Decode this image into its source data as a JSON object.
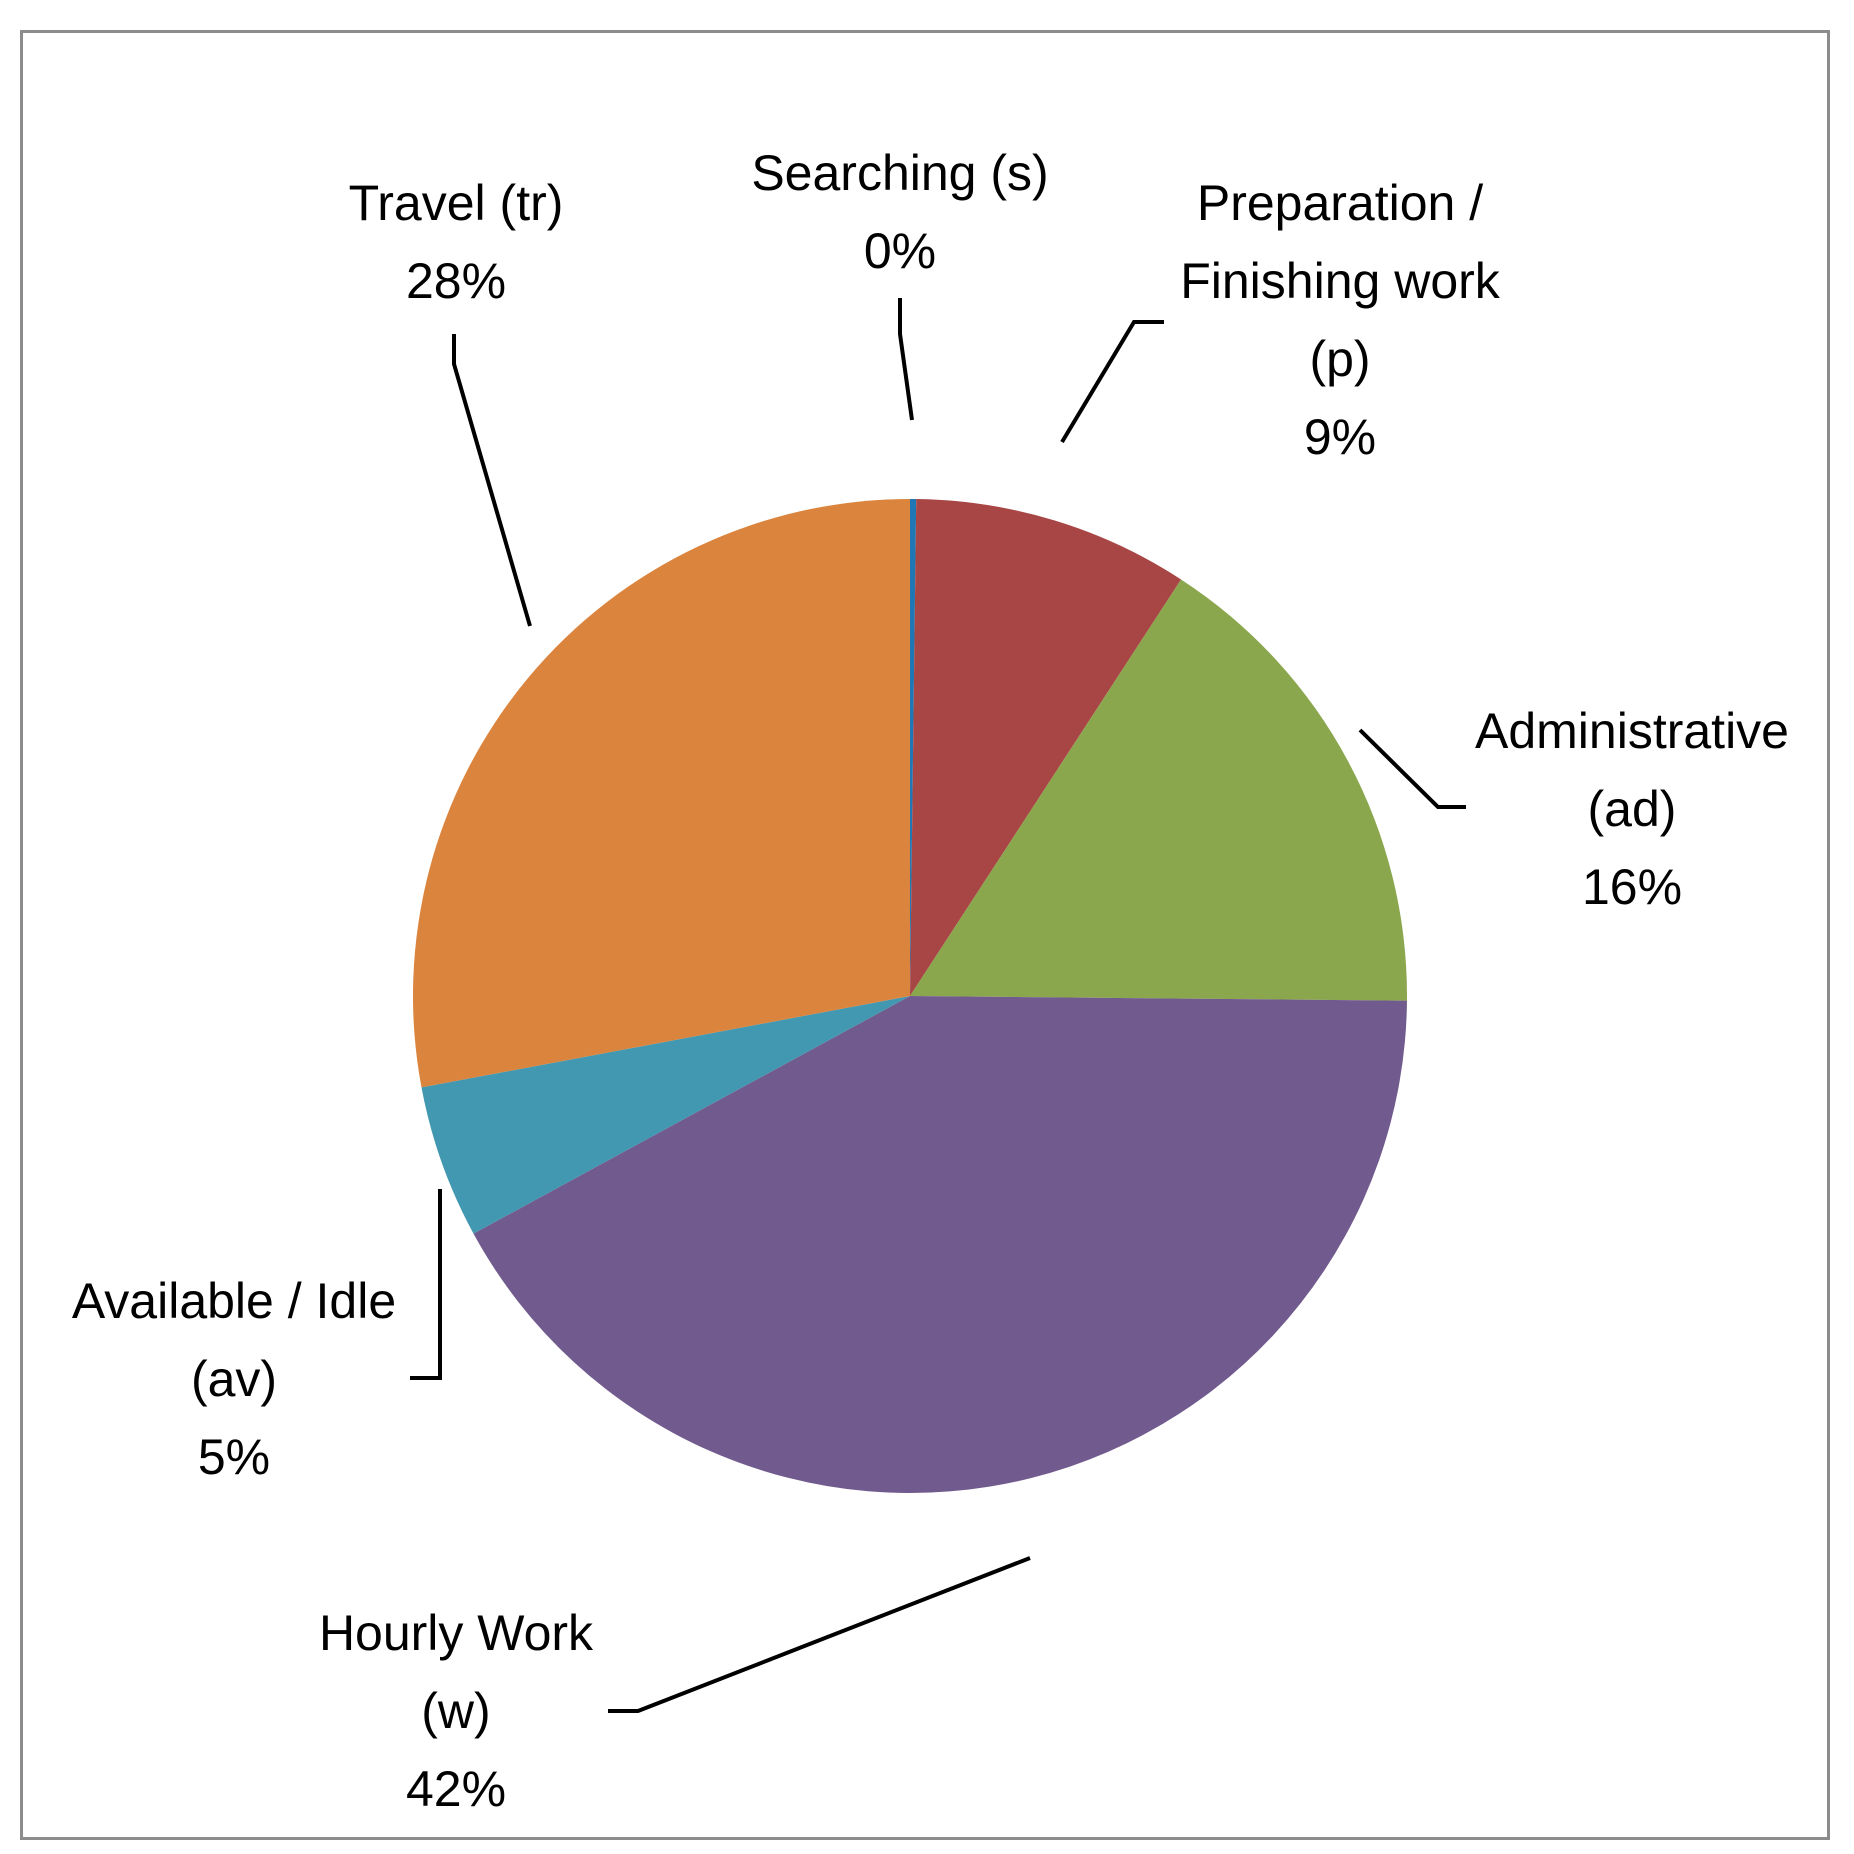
{
  "chart_data": {
    "type": "pie",
    "start_angle_deg": 0,
    "direction": "clockwise",
    "slices": [
      {
        "key": "s",
        "label_lines": [
          "Searching (s)"
        ],
        "value": 0.2,
        "percent_label": "0%",
        "color": "#1f77b4"
      },
      {
        "key": "p",
        "label_lines": [
          "Preparation /",
          "Finishing work",
          "(p)"
        ],
        "value": 9,
        "percent_label": "9%",
        "color": "#a84645"
      },
      {
        "key": "ad",
        "label_lines": [
          "Administrative",
          "(ad)"
        ],
        "value": 16,
        "percent_label": "16%",
        "color": "#8ba74e"
      },
      {
        "key": "w",
        "label_lines": [
          "Hourly Work",
          "(w)"
        ],
        "value": 42,
        "percent_label": "42%",
        "color": "#715a8e"
      },
      {
        "key": "av",
        "label_lines": [
          "Available / Idle",
          "(av)"
        ],
        "value": 5,
        "percent_label": "5%",
        "color": "#4298b0"
      },
      {
        "key": "tr",
        "label_lines": [
          "Travel (tr)"
        ],
        "value": 28,
        "percent_label": "28%",
        "color": "#db843e"
      }
    ]
  }
}
